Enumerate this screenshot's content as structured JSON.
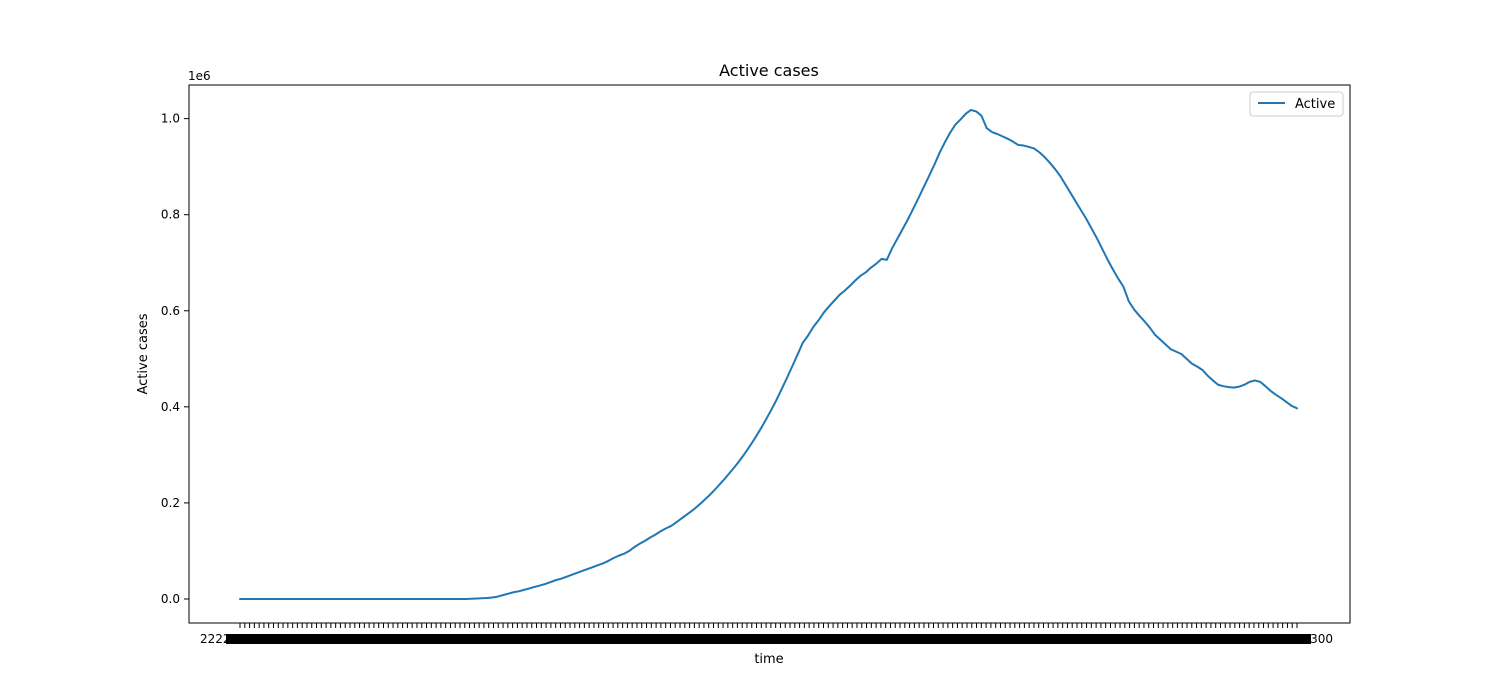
{
  "chart_data": {
    "type": "line",
    "title": "Active cases",
    "xlabel": "time",
    "ylabel": "Active cases",
    "y_offset_label": "1e6",
    "ylim": [
      -0.05,
      1.07
    ],
    "y_ticks": [
      0.0,
      0.2,
      0.4,
      0.6,
      0.8,
      1.0
    ],
    "y_tick_labels": [
      "0.0",
      "0.2",
      "0.4",
      "0.6",
      "0.8",
      "1.0"
    ],
    "x_tick_count": 222,
    "x_tick_labels_left": "22222",
    "x_tick_labels_right": "30300",
    "grid": false,
    "legend": {
      "position": "top-right",
      "entries": [
        "Active"
      ]
    },
    "series": [
      {
        "name": "Active",
        "color": "#1f77b4",
        "values": [
          0.0,
          0.0,
          0.0,
          0.0,
          0.0,
          0.0,
          0.0,
          0.0,
          0.0,
          0.0,
          0.0,
          0.0,
          0.0,
          0.0,
          0.0,
          0.0,
          0.0,
          0.0,
          0.0,
          0.0,
          0.0,
          0.0,
          0.0,
          0.0,
          0.0,
          0.0,
          0.0,
          0.0,
          0.0,
          0.0,
          0.0,
          0.0,
          0.0,
          0.0,
          0.0,
          0.0,
          0.0,
          0.0,
          0.0,
          0.0,
          0.0,
          0.0,
          0.0,
          0.0,
          0.0005,
          0.001,
          0.0015,
          0.002,
          0.003,
          0.005,
          0.008,
          0.011,
          0.014,
          0.016,
          0.019,
          0.022,
          0.025,
          0.028,
          0.031,
          0.035,
          0.039,
          0.042,
          0.046,
          0.05,
          0.054,
          0.058,
          0.062,
          0.066,
          0.07,
          0.074,
          0.079,
          0.085,
          0.09,
          0.094,
          0.1,
          0.108,
          0.115,
          0.121,
          0.128,
          0.134,
          0.141,
          0.147,
          0.152,
          0.16,
          0.168,
          0.176,
          0.184,
          0.193,
          0.203,
          0.213,
          0.224,
          0.236,
          0.248,
          0.261,
          0.274,
          0.288,
          0.303,
          0.319,
          0.336,
          0.354,
          0.373,
          0.393,
          0.414,
          0.437,
          0.46,
          0.484,
          0.508,
          0.533,
          0.548,
          0.566,
          0.58,
          0.596,
          0.609,
          0.621,
          0.633,
          0.642,
          0.652,
          0.663,
          0.673,
          0.68,
          0.69,
          0.698,
          0.708,
          0.706,
          0.73,
          0.75,
          0.77,
          0.79,
          0.812,
          0.834,
          0.857,
          0.88,
          0.903,
          0.928,
          0.95,
          0.97,
          0.987,
          0.998,
          1.01,
          1.018,
          1.015,
          1.006,
          0.98,
          0.972,
          0.968,
          0.963,
          0.958,
          0.952,
          0.945,
          0.944,
          0.941,
          0.938,
          0.93,
          0.92,
          0.908,
          0.895,
          0.88,
          0.862,
          0.844,
          0.826,
          0.808,
          0.79,
          0.77,
          0.75,
          0.728,
          0.706,
          0.686,
          0.667,
          0.65,
          0.62,
          0.603,
          0.59,
          0.578,
          0.565,
          0.55,
          0.54,
          0.53,
          0.52,
          0.515,
          0.51,
          0.5,
          0.49,
          0.484,
          0.477,
          0.465,
          0.455,
          0.446,
          0.443,
          0.441,
          0.44,
          0.442,
          0.446,
          0.452,
          0.455,
          0.452,
          0.443,
          0.433,
          0.425,
          0.418,
          0.41,
          0.402,
          0.397
        ]
      }
    ]
  }
}
